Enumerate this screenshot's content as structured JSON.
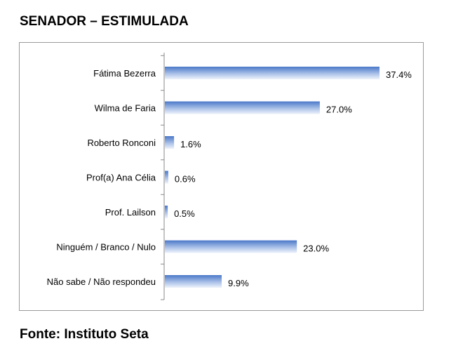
{
  "page": {
    "title": "SENADOR – ESTIMULADA",
    "source": "Fonte: Instituto Seta"
  },
  "chart_data": {
    "type": "bar",
    "orientation": "horizontal",
    "categories": [
      "Fátima Bezerra",
      "Wilma de Faria",
      "Roberto Ronconi",
      "Prof(a) Ana Célia",
      "Prof. Lailson",
      "Ninguém / Branco / Nulo",
      "Não sabe / Não respondeu"
    ],
    "values": [
      37.4,
      27.0,
      1.6,
      0.6,
      0.5,
      23.0,
      9.9
    ],
    "value_labels": [
      "37.4%",
      "27.0%",
      "1.6%",
      "0.6%",
      "0.5%",
      "23.0%",
      "9.9%"
    ],
    "xlim": [
      0,
      37.4
    ],
    "grid": false,
    "legend": "none",
    "colors": {
      "bar_top": "#4a78c8",
      "bar_bottom": "#eef3fb",
      "axis": "#888888",
      "frame": "#9a9a9a"
    }
  }
}
